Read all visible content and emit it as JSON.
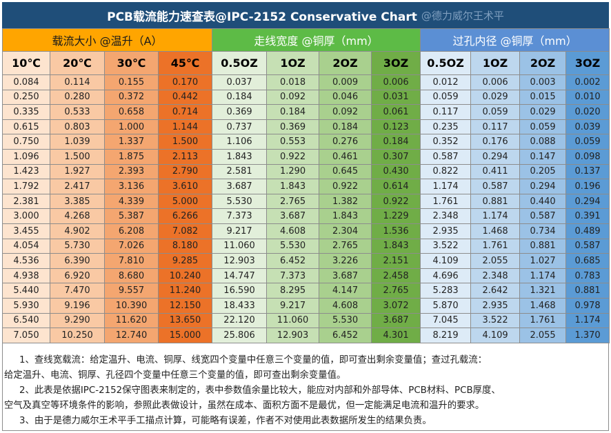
{
  "title": {
    "text": "PCB载流能力速查表@IPC-2152 Conservative Chart",
    "watermark": "@德力威尔王术平"
  },
  "groups": {
    "current": "载流大小 @温升（A）",
    "trace_width": "走线宽度 @铜厚（mm）",
    "via_diameter": "过孔内径 @铜厚（mm）"
  },
  "columns": [
    "10℃",
    "20℃",
    "30℃",
    "45℃",
    "0.5OZ",
    "1OZ",
    "2OZ",
    "3OZ",
    "0.5OZ",
    "1OZ",
    "2OZ",
    "3OZ"
  ],
  "rows": [
    [
      "0.084",
      "0.114",
      "0.155",
      "0.170",
      "0.037",
      "0.018",
      "0.009",
      "0.006",
      "0.012",
      "0.006",
      "0.003",
      "0.002"
    ],
    [
      "0.250",
      "0.280",
      "0.372",
      "0.442",
      "0.184",
      "0.092",
      "0.046",
      "0.031",
      "0.059",
      "0.029",
      "0.015",
      "0.010"
    ],
    [
      "0.335",
      "0.533",
      "0.658",
      "0.714",
      "0.369",
      "0.184",
      "0.092",
      "0.061",
      "0.117",
      "0.059",
      "0.029",
      "0.020"
    ],
    [
      "0.615",
      "0.803",
      "1.000",
      "1.144",
      "0.737",
      "0.369",
      "0.184",
      "0.123",
      "0.235",
      "0.117",
      "0.059",
      "0.039"
    ],
    [
      "0.750",
      "1.039",
      "1.337",
      "1.500",
      "1.106",
      "0.553",
      "0.276",
      "0.184",
      "0.352",
      "0.176",
      "0.088",
      "0.059"
    ],
    [
      "1.096",
      "1.500",
      "1.875",
      "2.113",
      "1.843",
      "0.922",
      "0.461",
      "0.307",
      "0.587",
      "0.294",
      "0.147",
      "0.098"
    ],
    [
      "1.423",
      "1.927",
      "2.393",
      "2.790",
      "2.581",
      "1.290",
      "0.645",
      "0.430",
      "0.822",
      "0.411",
      "0.205",
      "0.137"
    ],
    [
      "1.792",
      "2.417",
      "3.136",
      "3.610",
      "3.687",
      "1.843",
      "0.922",
      "0.614",
      "1.174",
      "0.587",
      "0.294",
      "0.196"
    ],
    [
      "2.381",
      "3.385",
      "4.339",
      "5.000",
      "5.530",
      "2.765",
      "1.382",
      "0.922",
      "1.761",
      "0.881",
      "0.440",
      "0.294"
    ],
    [
      "3.000",
      "4.268",
      "5.387",
      "6.266",
      "7.373",
      "3.687",
      "1.843",
      "1.229",
      "2.348",
      "1.174",
      "0.587",
      "0.391"
    ],
    [
      "3.455",
      "4.902",
      "6.208",
      "7.082",
      "9.217",
      "4.608",
      "2.304",
      "1.536",
      "2.935",
      "1.468",
      "0.734",
      "0.489"
    ],
    [
      "4.054",
      "5.730",
      "7.026",
      "8.180",
      "11.060",
      "5.530",
      "2.765",
      "1.843",
      "3.522",
      "1.761",
      "0.881",
      "0.587"
    ],
    [
      "4.536",
      "6.390",
      "7.810",
      "9.285",
      "12.903",
      "6.452",
      "3.226",
      "2.151",
      "4.109",
      "2.055",
      "1.027",
      "0.685"
    ],
    [
      "4.938",
      "6.920",
      "8.680",
      "10.240",
      "14.747",
      "7.373",
      "3.687",
      "2.458",
      "4.696",
      "2.348",
      "1.174",
      "0.783"
    ],
    [
      "5.440",
      "7.470",
      "9.557",
      "11.240",
      "16.590",
      "8.295",
      "4.147",
      "2.765",
      "5.283",
      "2.642",
      "1.321",
      "0.881"
    ],
    [
      "5.930",
      "9.196",
      "10.390",
      "12.150",
      "18.433",
      "9.217",
      "4.608",
      "3.072",
      "5.870",
      "2.935",
      "1.468",
      "0.978"
    ],
    [
      "6.540",
      "9.290",
      "11.620",
      "13.650",
      "22.120",
      "11.060",
      "5.530",
      "3.687",
      "7.045",
      "3.522",
      "1.761",
      "1.174"
    ],
    [
      "7.050",
      "10.250",
      "12.740",
      "15.000",
      "25.806",
      "12.903",
      "6.452",
      "4.301",
      "8.219",
      "4.109",
      "2.055",
      "1.370"
    ]
  ],
  "notes": [
    "1、查线宽载流：给定温升、电流、铜厚、线宽四个变量中任意三个变量的值，即可查出剩余变量值；查过孔载流：",
    "给定温升、电流、铜厚、孔径四个变量中任意三个变量的值，即可查出剩余变量值。",
    "2、此表是依据IPC-2152保守图表来制定的，表中参数值余量比较大，能应对内部和外部导体、PCB材料、PCB厚度、",
    "空气及真空等环境条件的影响，参照此表做设计，虽然在成本、面积方面不是最优，但一定能满足电流和温升的要求。",
    "3、由于是德力威尔王术平手工描点计算，可能略有误差，作者不对使用此表数据所发生的结果负责。"
  ],
  "colors": {
    "title_bg": "#1f4e79",
    "current_header": "#ffa500",
    "trace_header": "#5dbb46",
    "via_header": "#5b8fd4"
  }
}
